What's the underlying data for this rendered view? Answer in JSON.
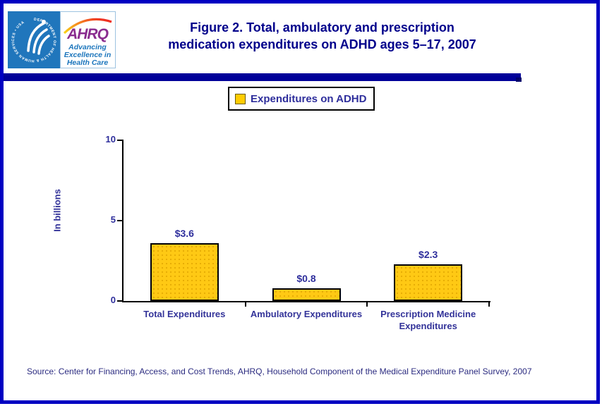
{
  "logo": {
    "hhs_circle_text": "DEPARTMENT OF HEALTH & HUMAN SERVICES • USA",
    "ahrq_acronym": "AHRQ",
    "tagline_lines": [
      "Advancing",
      "Excellence in",
      "Health Care"
    ]
  },
  "title": {
    "line1": "Figure 2. Total, ambulatory and prescription",
    "line2": "medication expenditures on ADHD ages 5–17, 2007"
  },
  "legend": {
    "label": "Expenditures on ADHD"
  },
  "chart_data": {
    "type": "bar",
    "categories": [
      "Total Expenditures",
      "Ambulatory Expenditures",
      "Prescription Medicine Expenditures"
    ],
    "values": [
      3.6,
      0.8,
      2.3
    ],
    "value_labels": [
      "$3.6",
      "$0.8",
      "$2.3"
    ],
    "ylabel": "In billions",
    "xlabel": "",
    "yticks": [
      0,
      5,
      10
    ],
    "ylim": [
      0,
      10
    ],
    "grid": false,
    "legend": "Expenditures on ADHD",
    "legend_position": "top-center",
    "bar_color": "#FFC914",
    "bar_border_color": "#000000"
  },
  "source": {
    "text": "Source: Center for Financing, Access, and Cost Trends, AHRQ, Household Component of the Medical Expenditure Panel Survey, 2007"
  },
  "colors": {
    "page_border": "#0000C2",
    "divider": "#000099",
    "title_text": "#00008B",
    "chart_text": "#333399",
    "tick_text": "#2E2E9C",
    "hhs_blue": "#2076BC",
    "ahrq_purple": "#8A2C8F",
    "tagline_blue": "#1B75BC",
    "axis_color": "#000000"
  }
}
